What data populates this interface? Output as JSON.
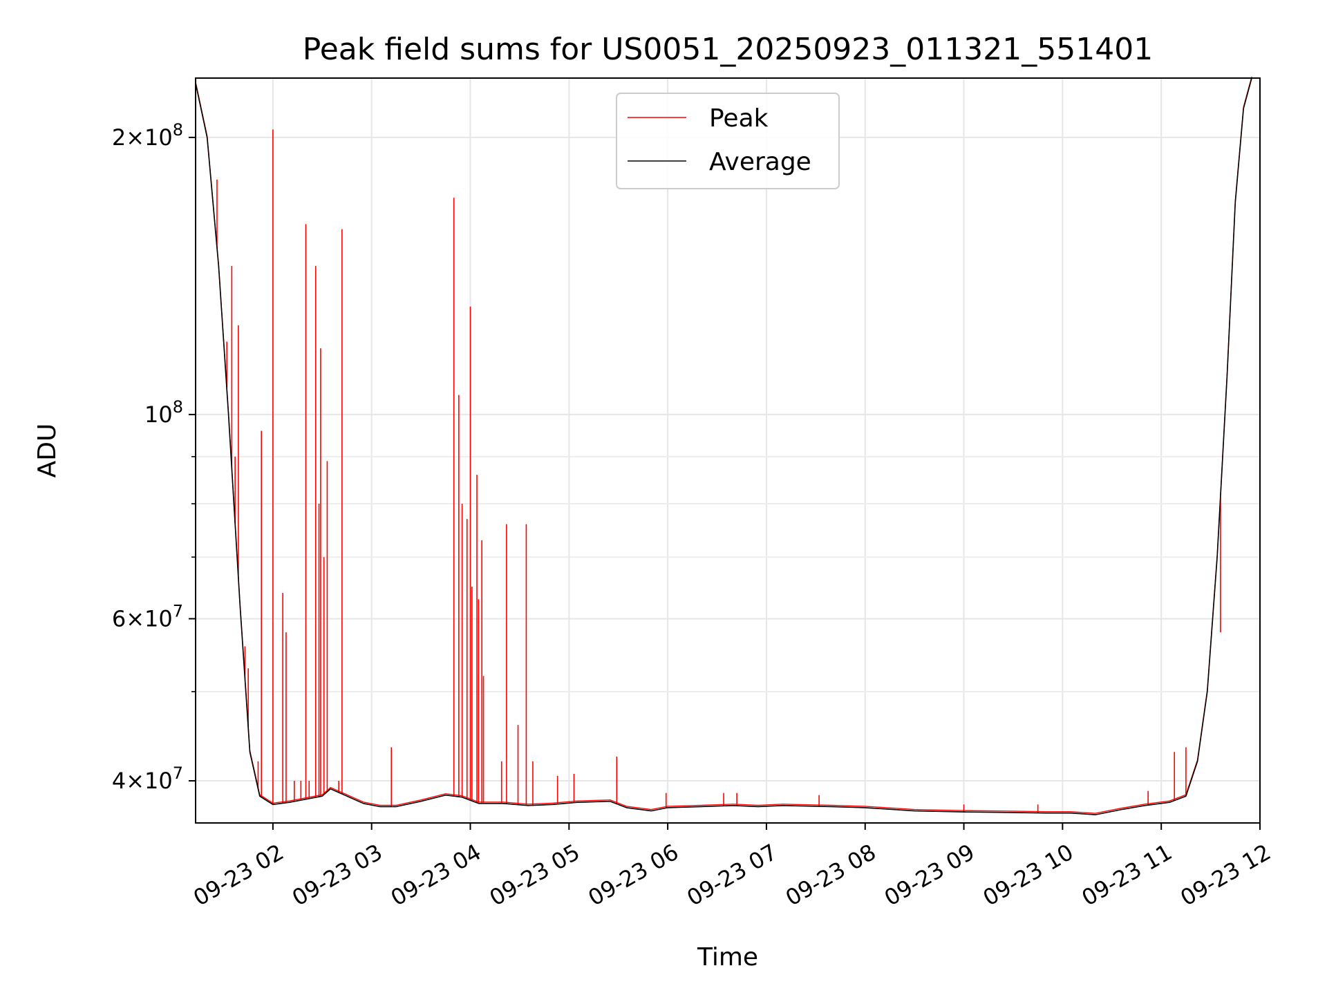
{
  "chart_data": {
    "type": "line",
    "title": "Peak field sums for US0051_20250923_011321_551401",
    "xlabel": "Time",
    "ylabel": "ADU",
    "y_scale": "log",
    "xlim": [
      "2025-09-23 01:13",
      "2025-09-23 12:00"
    ],
    "ylim": [
      36000000,
      232000000
    ],
    "grid": true,
    "legend": {
      "placement": "upper center"
    },
    "x_ticks": [
      {
        "value": "2025-09-23 02:00",
        "label": "09-23 02"
      },
      {
        "value": "2025-09-23 03:00",
        "label": "09-23 03"
      },
      {
        "value": "2025-09-23 04:00",
        "label": "09-23 04"
      },
      {
        "value": "2025-09-23 05:00",
        "label": "09-23 05"
      },
      {
        "value": "2025-09-23 06:00",
        "label": "09-23 06"
      },
      {
        "value": "2025-09-23 07:00",
        "label": "09-23 07"
      },
      {
        "value": "2025-09-23 08:00",
        "label": "09-23 08"
      },
      {
        "value": "2025-09-23 09:00",
        "label": "09-23 09"
      },
      {
        "value": "2025-09-23 10:00",
        "label": "09-23 10"
      },
      {
        "value": "2025-09-23 11:00",
        "label": "09-23 11"
      },
      {
        "value": "2025-09-23 12:00",
        "label": "09-23 12"
      }
    ],
    "y_major_ticks": [
      {
        "value": 40000000,
        "mantissa": "4",
        "exponent": "7"
      },
      {
        "value": 60000000,
        "mantissa": "6",
        "exponent": "7"
      },
      {
        "value": 100000000,
        "mantissa": "",
        "exponent": "8"
      },
      {
        "value": 200000000,
        "mantissa": "2",
        "exponent": "8"
      }
    ],
    "y_minor_ticks": [
      50000000,
      70000000,
      80000000,
      90000000
    ],
    "series": [
      {
        "name": "Peak",
        "color": "#ff0000",
        "spikes": [
          [
            "2025-09-23 01:26",
            180000000
          ],
          [
            "2025-09-23 01:32",
            120000000
          ],
          [
            "2025-09-23 01:35",
            145000000
          ],
          [
            "2025-09-23 01:37",
            90000000
          ],
          [
            "2025-09-23 01:39",
            125000000
          ],
          [
            "2025-09-23 01:43",
            56000000
          ],
          [
            "2025-09-23 01:45",
            53000000
          ],
          [
            "2025-09-23 01:51",
            42000000
          ],
          [
            "2025-09-23 01:53",
            96000000
          ],
          [
            "2025-09-23 02:00",
            204000000
          ],
          [
            "2025-09-23 02:06",
            64000000
          ],
          [
            "2025-09-23 02:08",
            58000000
          ],
          [
            "2025-09-23 02:13",
            40000000
          ],
          [
            "2025-09-23 02:17",
            40000000
          ],
          [
            "2025-09-23 02:20",
            161000000
          ],
          [
            "2025-09-23 02:22",
            40000000
          ],
          [
            "2025-09-23 02:26",
            145000000
          ],
          [
            "2025-09-23 02:28",
            80000000
          ],
          [
            "2025-09-23 02:29",
            118000000
          ],
          [
            "2025-09-23 02:31",
            70000000
          ],
          [
            "2025-09-23 02:33",
            89000000
          ],
          [
            "2025-09-23 02:40",
            40000000
          ],
          [
            "2025-09-23 02:42",
            159000000
          ],
          [
            "2025-09-23 03:12",
            43500000
          ],
          [
            "2025-09-23 03:50",
            172000000
          ],
          [
            "2025-09-23 03:53",
            105000000
          ],
          [
            "2025-09-23 03:55",
            80000000
          ],
          [
            "2025-09-23 03:58",
            77000000
          ],
          [
            "2025-09-23 04:00",
            131000000
          ],
          [
            "2025-09-23 04:01",
            65000000
          ],
          [
            "2025-09-23 04:04",
            86000000
          ],
          [
            "2025-09-23 04:05",
            63000000
          ],
          [
            "2025-09-23 04:07",
            73000000
          ],
          [
            "2025-09-23 04:08",
            52000000
          ],
          [
            "2025-09-23 04:19",
            42000000
          ],
          [
            "2025-09-23 04:22",
            76000000
          ],
          [
            "2025-09-23 04:29",
            46000000
          ],
          [
            "2025-09-23 04:34",
            76000000
          ],
          [
            "2025-09-23 04:38",
            42000000
          ],
          [
            "2025-09-23 04:53",
            40500000
          ],
          [
            "2025-09-23 05:03",
            40700000
          ],
          [
            "2025-09-23 05:29",
            42500000
          ],
          [
            "2025-09-23 05:59",
            38800000
          ],
          [
            "2025-09-23 06:34",
            38800000
          ],
          [
            "2025-09-23 06:42",
            38800000
          ],
          [
            "2025-09-23 07:32",
            38600000
          ],
          [
            "2025-09-23 09:00",
            37700000
          ],
          [
            "2025-09-23 09:45",
            37700000
          ],
          [
            "2025-09-23 10:52",
            39000000
          ],
          [
            "2025-09-23 11:08",
            43000000
          ],
          [
            "2025-09-23 11:15",
            43500000
          ],
          [
            "2025-09-23 11:36",
            58000000
          ]
        ]
      },
      {
        "name": "Average",
        "color": "#000000",
        "points": [
          [
            "2025-09-23 01:13",
            229000000
          ],
          [
            "2025-09-23 01:20",
            200000000
          ],
          [
            "2025-09-23 01:27",
            145000000
          ],
          [
            "2025-09-23 01:33",
            100000000
          ],
          [
            "2025-09-23 01:40",
            62000000
          ],
          [
            "2025-09-23 01:46",
            43000000
          ],
          [
            "2025-09-23 01:52",
            38500000
          ],
          [
            "2025-09-23 02:00",
            37700000
          ],
          [
            "2025-09-23 02:10",
            37900000
          ],
          [
            "2025-09-23 02:20",
            38200000
          ],
          [
            "2025-09-23 02:30",
            38500000
          ],
          [
            "2025-09-23 02:35",
            39200000
          ],
          [
            "2025-09-23 02:45",
            38500000
          ],
          [
            "2025-09-23 02:55",
            37800000
          ],
          [
            "2025-09-23 03:05",
            37500000
          ],
          [
            "2025-09-23 03:15",
            37500000
          ],
          [
            "2025-09-23 03:30",
            38000000
          ],
          [
            "2025-09-23 03:45",
            38600000
          ],
          [
            "2025-09-23 03:55",
            38400000
          ],
          [
            "2025-09-23 04:05",
            37800000
          ],
          [
            "2025-09-23 04:20",
            37800000
          ],
          [
            "2025-09-23 04:35",
            37600000
          ],
          [
            "2025-09-23 04:50",
            37700000
          ],
          [
            "2025-09-23 05:05",
            37900000
          ],
          [
            "2025-09-23 05:25",
            38000000
          ],
          [
            "2025-09-23 05:35",
            37400000
          ],
          [
            "2025-09-23 05:50",
            37100000
          ],
          [
            "2025-09-23 06:00",
            37400000
          ],
          [
            "2025-09-23 06:20",
            37500000
          ],
          [
            "2025-09-23 06:40",
            37600000
          ],
          [
            "2025-09-23 06:55",
            37500000
          ],
          [
            "2025-09-23 07:10",
            37600000
          ],
          [
            "2025-09-23 07:40",
            37500000
          ],
          [
            "2025-09-23 08:00",
            37400000
          ],
          [
            "2025-09-23 08:30",
            37100000
          ],
          [
            "2025-09-23 09:00",
            37000000
          ],
          [
            "2025-09-23 09:30",
            36950000
          ],
          [
            "2025-09-23 09:50",
            36900000
          ],
          [
            "2025-09-23 10:05",
            36900000
          ],
          [
            "2025-09-23 10:20",
            36750000
          ],
          [
            "2025-09-23 10:35",
            37200000
          ],
          [
            "2025-09-23 10:50",
            37600000
          ],
          [
            "2025-09-23 11:05",
            37900000
          ],
          [
            "2025-09-23 11:15",
            38500000
          ],
          [
            "2025-09-23 11:22",
            42000000
          ],
          [
            "2025-09-23 11:28",
            50000000
          ],
          [
            "2025-09-23 11:34",
            70000000
          ],
          [
            "2025-09-23 11:40",
            110000000
          ],
          [
            "2025-09-23 11:45",
            170000000
          ],
          [
            "2025-09-23 11:50",
            215000000
          ],
          [
            "2025-09-23 11:55",
            232000000
          ]
        ]
      }
    ]
  }
}
